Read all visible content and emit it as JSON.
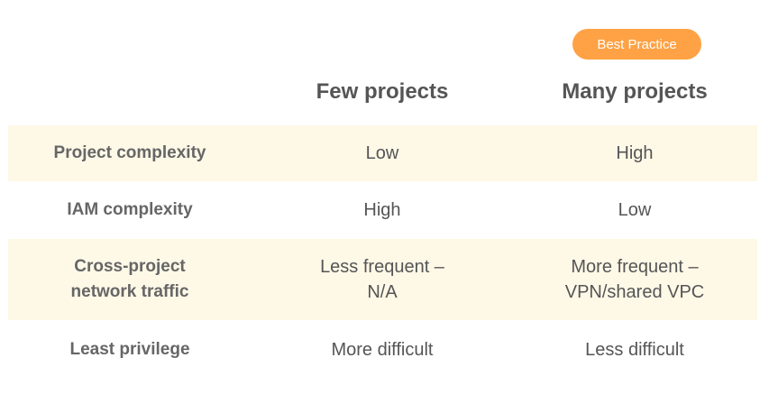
{
  "badge": {
    "label": "Best Practice"
  },
  "columns": [
    "Few projects",
    "Many projects"
  ],
  "rows": [
    {
      "label": [
        "Project complexity"
      ],
      "few": [
        "Low"
      ],
      "many": [
        "High"
      ],
      "shaded": true
    },
    {
      "label": [
        "IAM complexity"
      ],
      "few": [
        "High"
      ],
      "many": [
        "Low"
      ],
      "shaded": false
    },
    {
      "label": [
        "Cross-project",
        "network traffic"
      ],
      "few": [
        "Less frequent –",
        "N/A"
      ],
      "many": [
        "More frequent –",
        "VPN/shared VPC"
      ],
      "shaded": true
    },
    {
      "label": [
        "Least privilege"
      ],
      "few": [
        "More difficult"
      ],
      "many": [
        "Less difficult"
      ],
      "shaded": false
    }
  ],
  "colors": {
    "badge": "#ffa245",
    "row_shade": "#fef8e7",
    "text": "#555555"
  }
}
